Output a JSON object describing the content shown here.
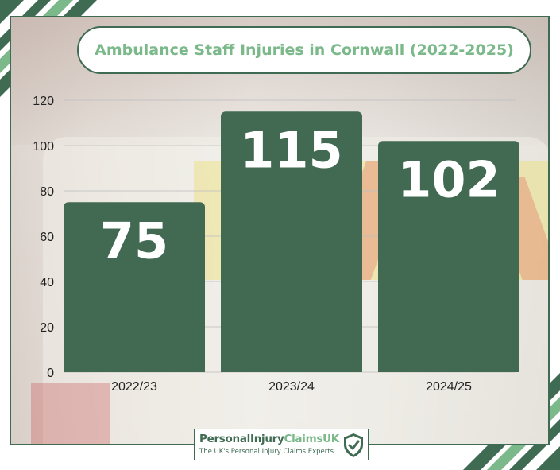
{
  "title": "Ambulance Staff Injuries in Cornwall (2022-2025)",
  "logo": {
    "name_part1": "PersonalInjury",
    "name_part2": "ClaimsUK",
    "tagline": "The UK's Personal Injury Claims Experts",
    "icon": "shield-check-icon"
  },
  "colors": {
    "bar": "#426a53",
    "accent": "#7bb88a",
    "dark_green": "#3f6b52"
  },
  "chart_data": {
    "type": "bar",
    "title": "Ambulance Staff Injuries in Cornwall (2022-2025)",
    "categories": [
      "2022/23",
      "2023/24",
      "2024/25"
    ],
    "values": [
      75,
      115,
      102
    ],
    "data_labels": [
      "75",
      "115",
      "102"
    ],
    "yticks": [
      0,
      20,
      40,
      60,
      80,
      100,
      120
    ],
    "ylim": [
      0,
      120
    ],
    "xlabel": "",
    "ylabel": "",
    "grid": true,
    "legend": "none"
  }
}
